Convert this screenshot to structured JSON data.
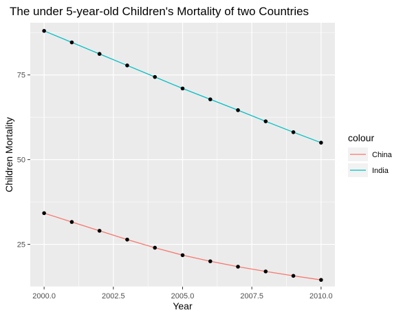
{
  "chart_data": {
    "type": "line",
    "title": "The under 5-year-old Children's Mortality of two Countries",
    "xlabel": "Year",
    "ylabel": "Children Mortality",
    "x": [
      2000,
      2001,
      2002,
      2003,
      2004,
      2005,
      2006,
      2007,
      2008,
      2009,
      2010
    ],
    "xlim": [
      1999.5,
      2010.5
    ],
    "ylim": [
      12.5,
      90.4
    ],
    "x_ticks": [
      2000.0,
      2002.5,
      2005.0,
      2007.5,
      2010.0
    ],
    "x_tick_labels": [
      "2000.0",
      "2002.5",
      "2005.0",
      "2007.5",
      "2010.0"
    ],
    "y_ticks": [
      25,
      50,
      75
    ],
    "y_tick_labels": [
      "25",
      "50",
      "75"
    ],
    "grid": true,
    "legend": {
      "title": "colour",
      "position": "right"
    },
    "series": [
      {
        "name": "China",
        "color": "#F8766D",
        "values": [
          34.2,
          31.6,
          29.0,
          26.4,
          24.0,
          21.8,
          20.0,
          18.4,
          17.0,
          15.7,
          14.5
        ]
      },
      {
        "name": "India",
        "color": "#00BFC4",
        "values": [
          88.0,
          84.6,
          81.2,
          77.8,
          74.4,
          71.0,
          67.8,
          64.6,
          61.3,
          58.1,
          55.0
        ]
      }
    ],
    "point_color": "#000000",
    "panel_background": "#EBEBEB"
  }
}
